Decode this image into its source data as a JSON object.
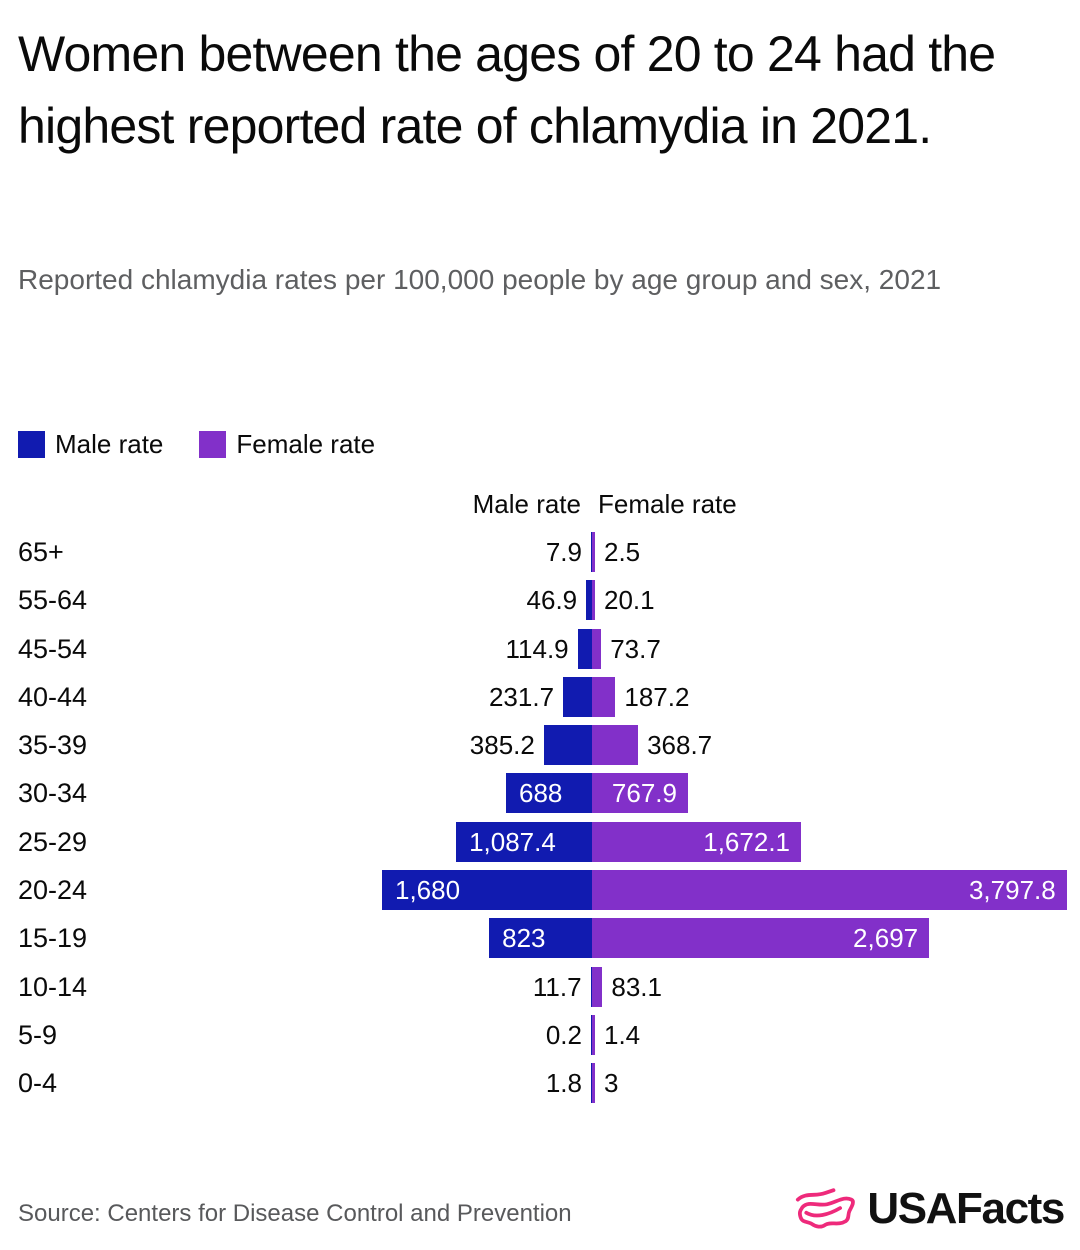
{
  "header": {
    "title": "Women between the ages of 20 to 24 had the highest reported rate of chlamydia in 2021.",
    "subtitle": "Reported chlamydia rates per 100,000 people by age group and sex, 2021"
  },
  "legend": {
    "items": [
      {
        "label": "Male rate",
        "color": "#111bb0"
      },
      {
        "label": "Female rate",
        "color": "#8230c9"
      }
    ]
  },
  "chart_data": {
    "type": "bar",
    "orientation": "diverging-horizontal",
    "title": "Reported chlamydia rates per 100,000 people by age group and sex, 2021",
    "column_headers": {
      "male": "Male rate",
      "female": "Female rate"
    },
    "categories": [
      "65+",
      "55-64",
      "45-54",
      "40-44",
      "35-39",
      "30-34",
      "25-29",
      "20-24",
      "15-19",
      "10-14",
      "5-9",
      "0-4"
    ],
    "series": [
      {
        "name": "Male rate",
        "color": "#111bb0",
        "side": "left",
        "values": [
          7.9,
          46.9,
          114.9,
          231.7,
          385.2,
          688,
          1087.4,
          1680,
          823,
          11.7,
          0.2,
          1.8
        ],
        "labels": [
          "7.9",
          "46.9",
          "114.9",
          "231.7",
          "385.2",
          "688",
          "1,087.4",
          "1,680",
          "823",
          "11.7",
          "0.2",
          "1.8"
        ]
      },
      {
        "name": "Female rate",
        "color": "#8230c9",
        "side": "right",
        "values": [
          2.5,
          20.1,
          73.7,
          187.2,
          368.7,
          767.9,
          1672.1,
          3797.8,
          2697,
          83.1,
          1.4,
          3
        ],
        "labels": [
          "2.5",
          "20.1",
          "73.7",
          "187.2",
          "368.7",
          "767.9",
          "1,672.1",
          "3,797.8",
          "2,697",
          "83.1",
          "1.4",
          "3"
        ]
      }
    ],
    "axis_max": 3797.8,
    "grid": false,
    "legend_position": "top-left",
    "value_labels": "on-bars"
  },
  "footer": {
    "source": "Source: Centers for Disease Control and Prevention",
    "logo_text": "USAFacts",
    "logo_color": "#ee2a7b"
  }
}
